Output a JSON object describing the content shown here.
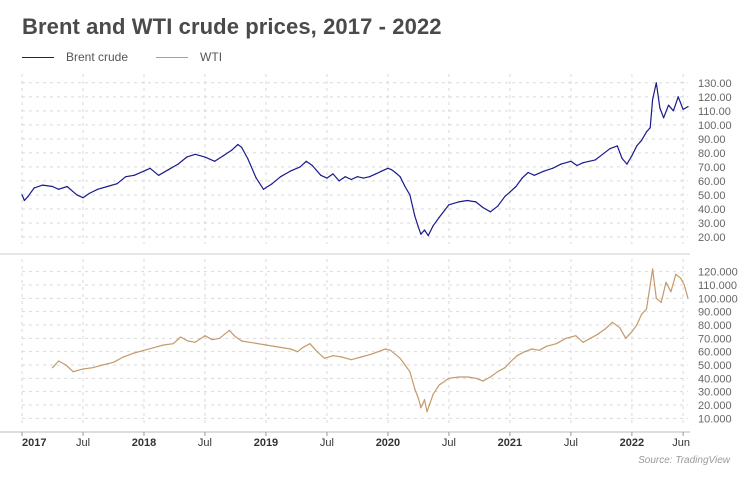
{
  "title": "Brent and WTI crude prices, 2017 - 2022",
  "source": "Source: TradingView",
  "colors": {
    "brent": "#1a1a8c",
    "wti": "#c49a6c",
    "grid": "#d9d9d9",
    "axis_text": "#666666",
    "separator": "#cccccc"
  },
  "chart_data": [
    {
      "type": "line",
      "name": "Brent crude",
      "color": "#1a1a8c",
      "x_range": [
        2017.0,
        2022.46
      ],
      "ylim": [
        15,
        132
      ],
      "yticks": [
        "20.00",
        "30.00",
        "40.00",
        "50.00",
        "60.00",
        "70.00",
        "80.00",
        "90.00",
        "100.00",
        "110.00",
        "120.00",
        "130.00"
      ],
      "ytick_values": [
        20,
        30,
        40,
        50,
        60,
        70,
        80,
        90,
        100,
        110,
        120,
        130
      ],
      "series": [
        {
          "name": "Brent crude",
          "x": [
            2017.0,
            2017.02,
            2017.05,
            2017.1,
            2017.17,
            2017.25,
            2017.3,
            2017.37,
            2017.45,
            2017.5,
            2017.55,
            2017.62,
            2017.7,
            2017.78,
            2017.85,
            2017.92,
            2018.0,
            2018.05,
            2018.12,
            2018.2,
            2018.28,
            2018.35,
            2018.42,
            2018.5,
            2018.58,
            2018.65,
            2018.72,
            2018.77,
            2018.8,
            2018.85,
            2018.92,
            2018.98,
            2019.05,
            2019.12,
            2019.2,
            2019.28,
            2019.33,
            2019.38,
            2019.45,
            2019.5,
            2019.55,
            2019.6,
            2019.65,
            2019.7,
            2019.75,
            2019.8,
            2019.85,
            2019.9,
            2019.95,
            2020.0,
            2020.03,
            2020.06,
            2020.1,
            2020.14,
            2020.18,
            2020.22,
            2020.25,
            2020.27,
            2020.3,
            2020.33,
            2020.37,
            2020.42,
            2020.5,
            2020.58,
            2020.65,
            2020.72,
            2020.78,
            2020.84,
            2020.9,
            2020.96,
            2021.0,
            2021.05,
            2021.1,
            2021.15,
            2021.2,
            2021.28,
            2021.35,
            2021.42,
            2021.5,
            2021.55,
            2021.6,
            2021.65,
            2021.7,
            2021.76,
            2021.82,
            2021.88,
            2021.92,
            2021.96,
            2022.0,
            2022.04,
            2022.08,
            2022.12,
            2022.15,
            2022.17,
            2022.2,
            2022.23,
            2022.26,
            2022.3,
            2022.34,
            2022.38,
            2022.42,
            2022.46
          ],
          "y": [
            50,
            46,
            49,
            55,
            57,
            56,
            54,
            56,
            50,
            48,
            51,
            54,
            56,
            58,
            63,
            64,
            67,
            69,
            64,
            68,
            72,
            77,
            79,
            77,
            74,
            78,
            82,
            86,
            84,
            76,
            62,
            54,
            58,
            63,
            67,
            70,
            74,
            71,
            64,
            62,
            65,
            60,
            63,
            61,
            63,
            62,
            63,
            65,
            67,
            69,
            68,
            66,
            63,
            56,
            50,
            35,
            27,
            22,
            25,
            21,
            28,
            34,
            43,
            45,
            46,
            45,
            41,
            38,
            42,
            49,
            52,
            56,
            62,
            66,
            64,
            67,
            69,
            72,
            74,
            71,
            73,
            74,
            75,
            79,
            83,
            85,
            76,
            72,
            78,
            85,
            89,
            95,
            98,
            118,
            130,
            112,
            105,
            114,
            110,
            120,
            111,
            113
          ]
        }
      ]
    },
    {
      "type": "line",
      "name": "WTI",
      "color": "#c49a6c",
      "x_range": [
        2017.0,
        2022.46
      ],
      "ylim": [
        5,
        125
      ],
      "yticks": [
        "10.000",
        "20.000",
        "30.000",
        "40.000",
        "50.000",
        "60.000",
        "70.000",
        "80.000",
        "90.000",
        "100.000",
        "110.000",
        "120.000"
      ],
      "ytick_values": [
        10,
        20,
        30,
        40,
        50,
        60,
        70,
        80,
        90,
        100,
        110,
        120
      ],
      "series": [
        {
          "name": "WTI",
          "x": [
            2017.25,
            2017.3,
            2017.36,
            2017.42,
            2017.5,
            2017.58,
            2017.66,
            2017.75,
            2017.83,
            2017.92,
            2018.0,
            2018.08,
            2018.16,
            2018.24,
            2018.3,
            2018.36,
            2018.42,
            2018.5,
            2018.56,
            2018.62,
            2018.66,
            2018.7,
            2018.74,
            2018.8,
            2019.0,
            2019.2,
            2019.26,
            2019.3,
            2019.36,
            2019.42,
            2019.48,
            2019.55,
            2019.62,
            2019.7,
            2019.78,
            2019.86,
            2019.92,
            2019.98,
            2020.02,
            2020.06,
            2020.1,
            2020.14,
            2020.18,
            2020.22,
            2020.25,
            2020.27,
            2020.3,
            2020.32,
            2020.34,
            2020.37,
            2020.42,
            2020.5,
            2020.58,
            2020.66,
            2020.72,
            2020.78,
            2020.84,
            2020.9,
            2020.96,
            2021.0,
            2021.06,
            2021.12,
            2021.18,
            2021.24,
            2021.3,
            2021.38,
            2021.46,
            2021.54,
            2021.6,
            2021.66,
            2021.72,
            2021.78,
            2021.84,
            2021.9,
            2021.95,
            2022.0,
            2022.04,
            2022.08,
            2022.12,
            2022.15,
            2022.17,
            2022.2,
            2022.24,
            2022.28,
            2022.32,
            2022.36,
            2022.4,
            2022.43,
            2022.46
          ],
          "y": [
            48,
            53,
            50,
            45,
            47,
            48,
            50,
            52,
            56,
            59,
            61,
            63,
            65,
            66,
            71,
            68,
            67,
            72,
            69,
            70,
            73,
            76,
            72,
            68,
            65,
            62,
            60,
            63,
            66,
            60,
            55,
            57,
            56,
            54,
            56,
            58,
            60,
            62,
            61,
            58,
            55,
            50,
            45,
            32,
            25,
            18,
            24,
            15,
            20,
            28,
            35,
            40,
            41,
            41,
            40,
            38,
            41,
            45,
            48,
            52,
            57,
            60,
            62,
            61,
            64,
            66,
            70,
            72,
            67,
            70,
            73,
            77,
            82,
            78,
            70,
            75,
            80,
            88,
            92,
            110,
            122,
            100,
            97,
            112,
            105,
            118,
            115,
            110,
            100
          ]
        }
      ]
    }
  ],
  "x_axis": {
    "ticks": [
      {
        "label": "2017",
        "x": 2017.0,
        "bold": true
      },
      {
        "label": "Jul",
        "x": 2017.5,
        "bold": false
      },
      {
        "label": "2018",
        "x": 2018.0,
        "bold": true
      },
      {
        "label": "Jul",
        "x": 2018.5,
        "bold": false
      },
      {
        "label": "2019",
        "x": 2019.0,
        "bold": true
      },
      {
        "label": "Jul",
        "x": 2019.5,
        "bold": false
      },
      {
        "label": "2020",
        "x": 2020.0,
        "bold": true
      },
      {
        "label": "Jul",
        "x": 2020.5,
        "bold": false
      },
      {
        "label": "2021",
        "x": 2021.0,
        "bold": true
      },
      {
        "label": "Jul",
        "x": 2021.5,
        "bold": false
      },
      {
        "label": "2022",
        "x": 2022.0,
        "bold": true
      },
      {
        "label": "Jun",
        "x": 2022.42,
        "bold": false
      }
    ]
  },
  "legend": [
    {
      "label": "Brent crude",
      "color": "#1a1a8c"
    },
    {
      "label": "WTI",
      "color": "#c49a6c"
    }
  ]
}
